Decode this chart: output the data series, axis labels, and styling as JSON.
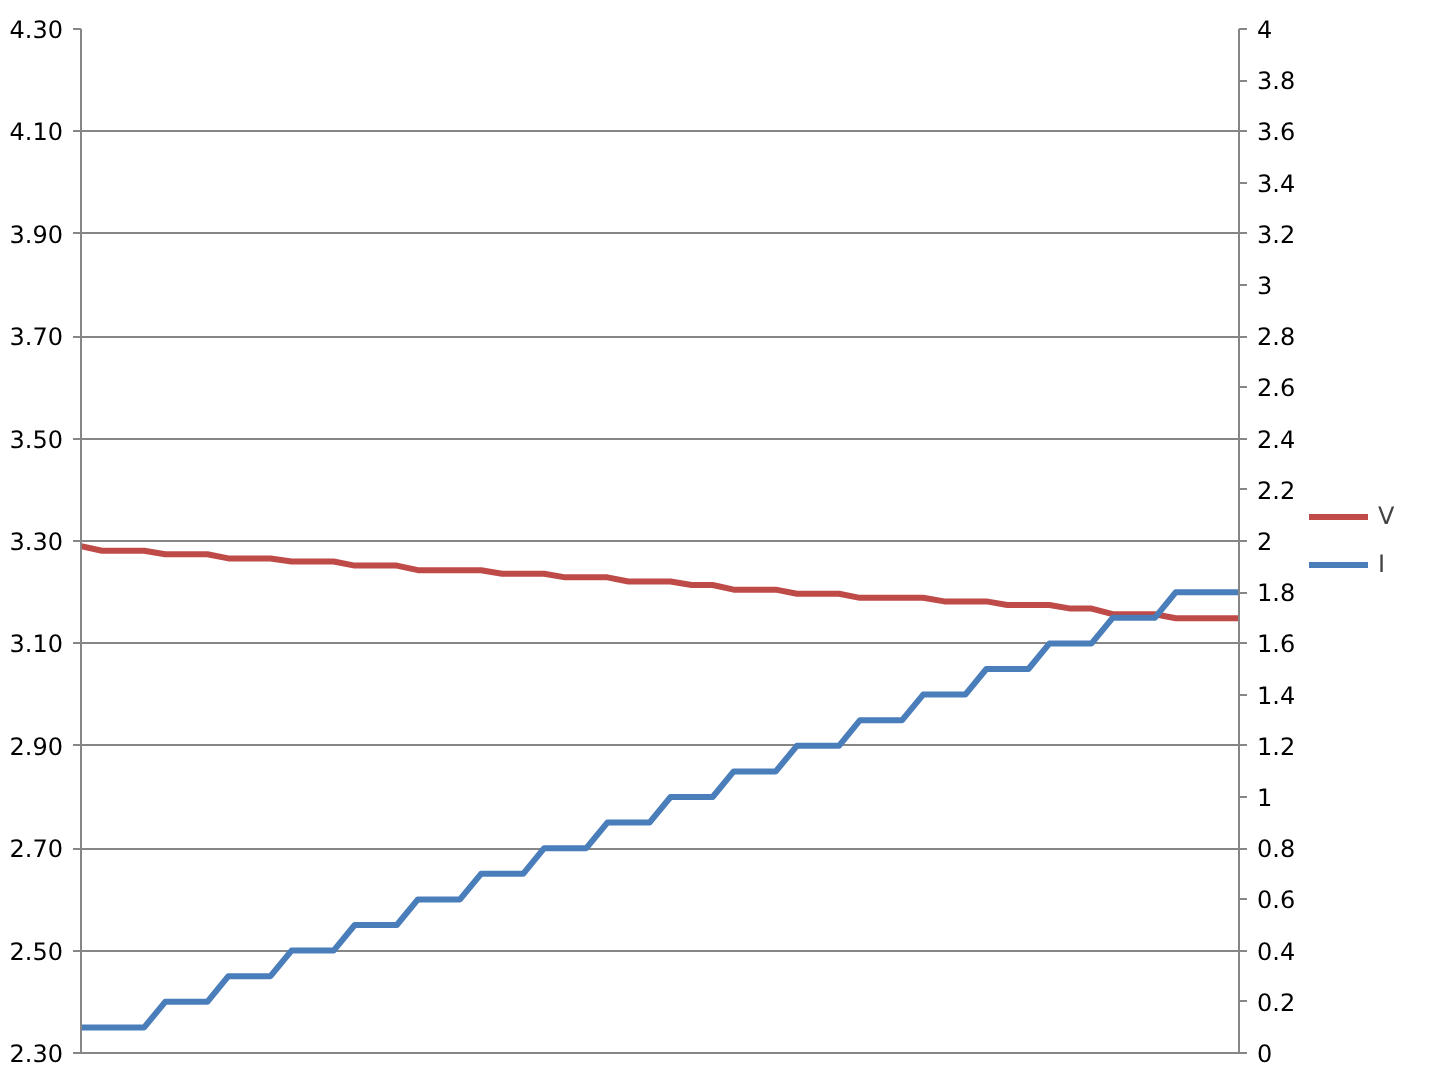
{
  "chart_data": {
    "type": "line",
    "categories": [
      null,
      null,
      null,
      null,
      null,
      null,
      null,
      null,
      null,
      null,
      null,
      null,
      null,
      null,
      null,
      null,
      null,
      null,
      null,
      null,
      null,
      null,
      null,
      null,
      null,
      null,
      null,
      null,
      null,
      null,
      null,
      null,
      null,
      null,
      null,
      null,
      null,
      null,
      null,
      null,
      null,
      null,
      null,
      null,
      null,
      null,
      null,
      null,
      null,
      null,
      null,
      null,
      null,
      null,
      null,
      null
    ],
    "series": [
      {
        "name": "V",
        "color": "#be4b48",
        "values": [
          3.29,
          3.281,
          3.281,
          3.281,
          3.274,
          3.274,
          3.274,
          3.266,
          3.266,
          3.266,
          3.26,
          3.26,
          3.26,
          3.252,
          3.252,
          3.252,
          3.243,
          3.243,
          3.243,
          3.243,
          3.236,
          3.236,
          3.236,
          3.229,
          3.229,
          3.229,
          3.221,
          3.221,
          3.221,
          3.214,
          3.214,
          3.205,
          3.205,
          3.205,
          3.197,
          3.197,
          3.197,
          3.189,
          3.189,
          3.189,
          3.189,
          3.182,
          3.182,
          3.182,
          3.175,
          3.175,
          3.175,
          3.168,
          3.168,
          3.157,
          3.157,
          3.157,
          3.149,
          3.149,
          3.149,
          3.149
        ]
      },
      {
        "name": "I",
        "color": "#4a7ebb",
        "axis": "y2",
        "values": [
          0.1,
          0.1,
          0.1,
          0.1,
          0.2,
          0.2,
          0.2,
          0.3,
          0.3,
          0.3,
          0.4,
          0.4,
          0.4,
          0.5,
          0.5,
          0.5,
          0.6,
          0.6,
          0.6,
          0.7,
          0.7,
          0.7,
          0.8,
          0.8,
          0.8,
          0.9,
          0.9,
          0.9,
          1.0,
          1.0,
          1.0,
          1.1,
          1.1,
          1.1,
          1.2,
          1.2,
          1.2,
          1.3,
          1.3,
          1.3,
          1.4,
          1.4,
          1.4,
          1.5,
          1.5,
          1.5,
          1.6,
          1.6,
          1.6,
          1.7,
          1.7,
          1.7,
          1.8,
          1.8,
          1.8,
          1.8
        ]
      }
    ],
    "ylim": [
      2.3,
      4.3
    ],
    "yticks": [
      {
        "value": 2.3,
        "label": "2.30"
      },
      {
        "value": 2.5,
        "label": "2.50"
      },
      {
        "value": 2.7,
        "label": "2.70"
      },
      {
        "value": 2.9,
        "label": "2.90"
      },
      {
        "value": 3.1,
        "label": "3.10"
      },
      {
        "value": 3.3,
        "label": "3.30"
      },
      {
        "value": 3.5,
        "label": "3.50"
      },
      {
        "value": 3.7,
        "label": "3.70"
      },
      {
        "value": 3.9,
        "label": "3.90"
      },
      {
        "value": 4.1,
        "label": "4.10"
      },
      {
        "value": 4.3,
        "label": "4.30"
      }
    ],
    "y2lim": [
      0,
      4
    ],
    "y2ticks": [
      0,
      0.2,
      0.4,
      0.6,
      0.8,
      1,
      1.2,
      1.4,
      1.6,
      1.8,
      2,
      2.2,
      2.4,
      2.6,
      2.8,
      3,
      3.2,
      3.4,
      3.6,
      3.8,
      4
    ],
    "grid": "y",
    "legend": "right",
    "marker": "none",
    "line_style": "solid"
  }
}
